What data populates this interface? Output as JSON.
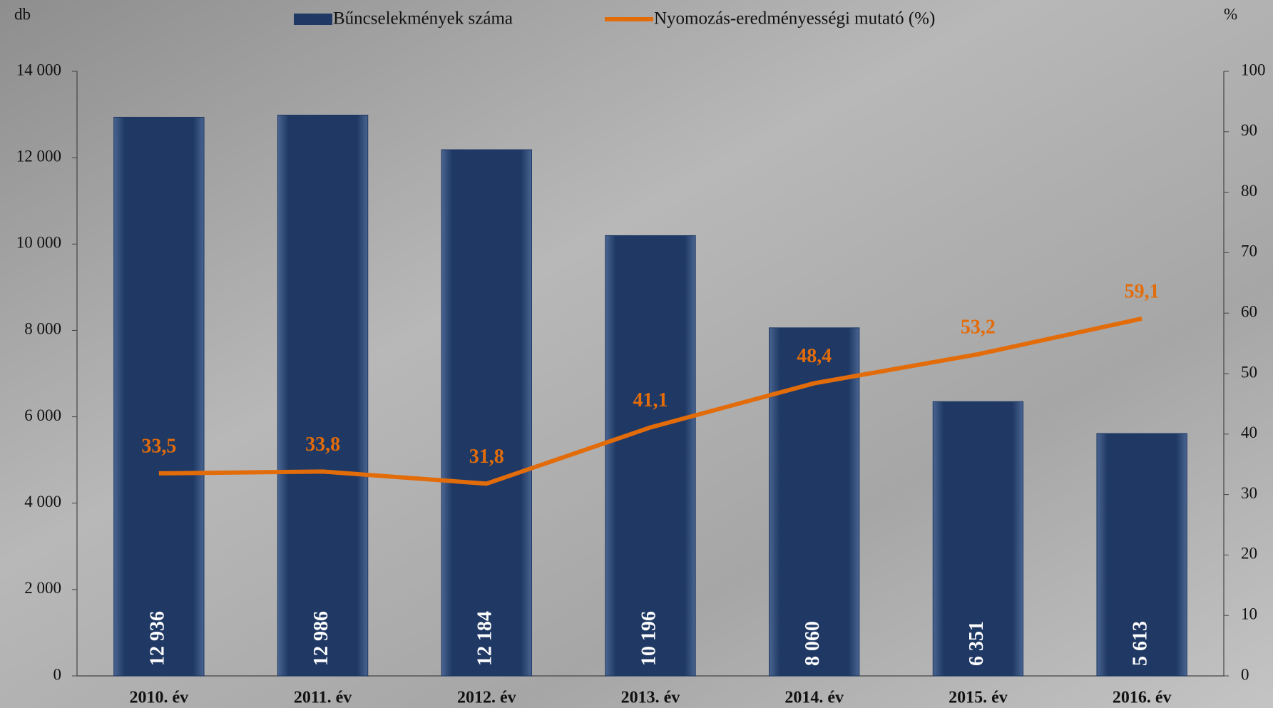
{
  "chart_data": {
    "type": "bar_line",
    "y_label": "db",
    "y2_label": "%",
    "categories": [
      "2010. év",
      "2011. év",
      "2012. év",
      "2013. év",
      "2014. év",
      "2015. év",
      "2016. év"
    ],
    "series": [
      {
        "name": "Bűncselekmények száma",
        "type": "bar",
        "color": "#1f3864",
        "values": [
          12936,
          12986,
          12184,
          10196,
          8060,
          6351,
          5613
        ],
        "value_labels": [
          "12 936",
          "12 986",
          "12 184",
          "10 196",
          "8 060",
          "6 351",
          "5 613"
        ]
      },
      {
        "name": "Nyomozás-eredményességi mutató (%)",
        "type": "line",
        "axis": "y2",
        "color": "#e36c0a",
        "values": [
          33.5,
          33.8,
          31.8,
          41.1,
          48.4,
          53.2,
          59.1
        ],
        "value_labels": [
          "33,5",
          "33,8",
          "31,8",
          "41,1",
          "48,4",
          "53,2",
          "59,1"
        ]
      }
    ],
    "ylim": [
      0,
      14000
    ],
    "yticks": [
      0,
      {
        "value": 2000,
        "label": "2 000"
      },
      {
        "value": 4000,
        "label": "4 000"
      },
      {
        "value": 6000,
        "label": "6 000"
      },
      {
        "value": 8000,
        "label": "8 000"
      },
      {
        "value": 10000,
        "label": "10 000"
      },
      {
        "value": 12000,
        "label": "12 000"
      },
      {
        "value": 14000,
        "label": "14 000"
      }
    ],
    "y2lim": [
      0,
      100
    ],
    "y2ticks": [
      0,
      10,
      20,
      30,
      40,
      50,
      60,
      70,
      80,
      90,
      100
    ]
  }
}
